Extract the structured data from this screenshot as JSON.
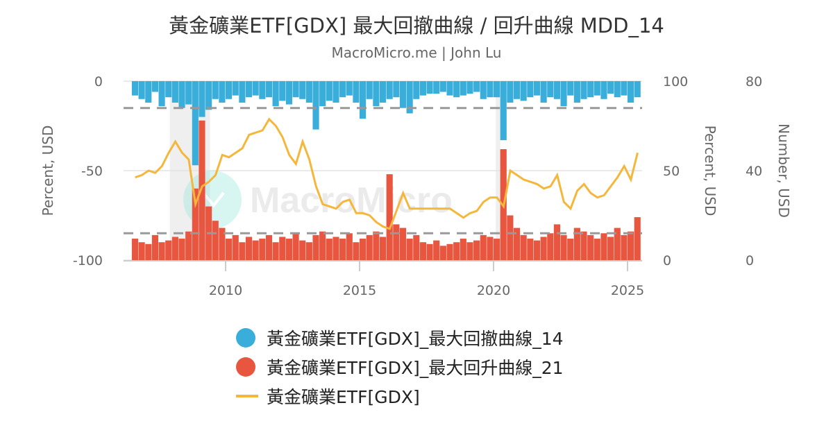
{
  "header": {
    "title": "黃金礦業ETF[GDX] 最大回撤曲線 / 回升曲線 MDD_14",
    "subtitle": "MacroMicro.me | John Lu"
  },
  "watermark": "MacroMicro",
  "chart_data": {
    "type": "bar+line",
    "x_ticks": [
      "2010",
      "2015",
      "2020",
      "2025"
    ],
    "axes": {
      "left": {
        "label": "Percent, USD",
        "range": [
          -100,
          0
        ],
        "ticks": [
          "0",
          "-50",
          "-100"
        ]
      },
      "right1": {
        "label": "Percent, USD",
        "range": [
          0,
          100
        ],
        "ticks": [
          "100",
          "50",
          "0"
        ]
      },
      "right2": {
        "label": "Number, USD",
        "range": [
          0,
          80
        ],
        "ticks": [
          "80",
          "40",
          "0"
        ]
      }
    },
    "grid": "horizontal",
    "legend_placement": "bottom",
    "threshold_lines": {
      "drawdown": -15,
      "drawup": 15
    },
    "shaded_periods": [
      [
        "2007-12",
        "2009-06"
      ],
      [
        "2020-02",
        "2020-04"
      ]
    ],
    "dates": [
      "2006-07",
      "2006-10",
      "2007-01",
      "2007-04",
      "2007-07",
      "2007-10",
      "2008-01",
      "2008-04",
      "2008-07",
      "2008-10",
      "2009-01",
      "2009-04",
      "2009-07",
      "2009-10",
      "2010-01",
      "2010-04",
      "2010-07",
      "2010-10",
      "2011-01",
      "2011-04",
      "2011-07",
      "2011-10",
      "2012-01",
      "2012-04",
      "2012-07",
      "2012-10",
      "2013-01",
      "2013-04",
      "2013-07",
      "2013-10",
      "2014-01",
      "2014-04",
      "2014-07",
      "2014-10",
      "2015-01",
      "2015-04",
      "2015-07",
      "2015-10",
      "2016-01",
      "2016-04",
      "2016-07",
      "2016-10",
      "2017-01",
      "2017-04",
      "2017-07",
      "2017-10",
      "2018-01",
      "2018-04",
      "2018-07",
      "2018-10",
      "2019-01",
      "2019-04",
      "2019-07",
      "2019-10",
      "2020-01",
      "2020-04",
      "2020-07",
      "2020-10",
      "2021-01",
      "2021-04",
      "2021-07",
      "2021-10",
      "2022-01",
      "2022-04",
      "2022-07",
      "2022-10",
      "2023-01",
      "2023-04",
      "2023-07",
      "2023-10",
      "2024-01",
      "2024-04",
      "2024-07",
      "2024-10",
      "2025-01",
      "2025-04"
    ],
    "series": [
      {
        "name": "黃金礦業ETF[GDX]_最大回撤曲線_14",
        "type": "bar",
        "axis": "left",
        "color": "#3aaedb",
        "values": [
          -8,
          -10,
          -12,
          -6,
          -14,
          -9,
          -12,
          -15,
          -13,
          -47,
          -20,
          -16,
          -10,
          -12,
          -10,
          -8,
          -12,
          -9,
          -8,
          -10,
          -9,
          -14,
          -11,
          -13,
          -9,
          -10,
          -12,
          -27,
          -14,
          -11,
          -12,
          -9,
          -8,
          -12,
          -21,
          -10,
          -14,
          -12,
          -10,
          -9,
          -15,
          -18,
          -10,
          -8,
          -7,
          -7,
          -6,
          -8,
          -9,
          -8,
          -7,
          -6,
          -10,
          -9,
          -9,
          -33,
          -12,
          -10,
          -11,
          -9,
          -8,
          -12,
          -9,
          -10,
          -14,
          -8,
          -12,
          -10,
          -9,
          -8,
          -10,
          -7,
          -9,
          -8,
          -12,
          -9
        ]
      },
      {
        "name": "黃金礦業ETF[GDX]_最大回升曲線_21",
        "type": "bar",
        "axis": "right1",
        "color": "#e8563f",
        "values": [
          12,
          10,
          9,
          14,
          10,
          11,
          13,
          12,
          16,
          40,
          78,
          30,
          22,
          18,
          12,
          14,
          10,
          13,
          11,
          12,
          14,
          10,
          13,
          12,
          15,
          11,
          10,
          14,
          16,
          12,
          13,
          12,
          15,
          10,
          12,
          14,
          16,
          13,
          48,
          20,
          18,
          12,
          14,
          10,
          9,
          11,
          8,
          9,
          10,
          12,
          10,
          11,
          14,
          13,
          12,
          62,
          25,
          18,
          14,
          12,
          11,
          13,
          15,
          20,
          14,
          12,
          18,
          16,
          14,
          12,
          15,
          13,
          18,
          14,
          16,
          24
        ]
      },
      {
        "name": "黃金礦業ETF[GDX]",
        "type": "line",
        "axis": "right2",
        "color": "#f5b73b",
        "values": [
          37,
          38,
          40,
          39,
          42,
          48,
          53,
          48,
          45,
          25,
          33,
          35,
          38,
          47,
          46,
          48,
          50,
          56,
          57,
          58,
          63,
          60,
          55,
          47,
          43,
          53,
          45,
          33,
          25,
          24,
          23,
          26,
          27,
          21,
          21,
          20,
          17,
          15,
          14,
          22,
          30,
          23,
          23,
          23,
          23,
          23,
          23,
          23,
          21,
          19,
          21,
          22,
          26,
          28,
          28,
          24,
          40,
          38,
          36,
          35,
          34,
          32,
          33,
          38,
          26,
          23,
          31,
          34,
          30,
          28,
          29,
          33,
          37,
          42,
          36,
          48
        ]
      }
    ]
  }
}
